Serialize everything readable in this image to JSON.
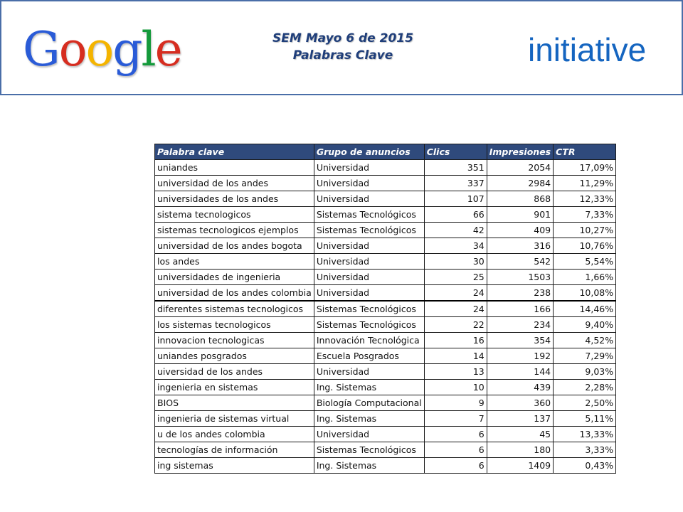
{
  "header": {
    "google_logo": [
      "G",
      "o",
      "o",
      "g",
      "l",
      "e"
    ],
    "google_colors": [
      "#2a5bd7",
      "#d62d20",
      "#f4b400",
      "#2a5bd7",
      "#149a3b",
      "#d62d20"
    ],
    "title_line1": "SEM Mayo 6 de 2015",
    "title_line2": "Palabras Clave",
    "initiative_logo": "initiative",
    "border_color": "#4a6ea8",
    "title_color": "#1f3e7a"
  },
  "table": {
    "header_bg": "#2f4a7c",
    "columns": [
      "Palabra clave",
      "Grupo de anuncios",
      "Clics",
      "Impresiones",
      "CTR"
    ],
    "rows": [
      [
        "uniandes",
        "Universidad",
        "351",
        "2054",
        "17,09%"
      ],
      [
        "universidad de los andes",
        "Universidad",
        "337",
        "2984",
        "11,29%"
      ],
      [
        "universidades de los andes",
        "Universidad",
        "107",
        "868",
        "12,33%"
      ],
      [
        "sistema tecnologicos",
        "Sistemas Tecnológicos",
        "66",
        "901",
        "7,33%"
      ],
      [
        "sistemas tecnologicos ejemplos",
        "Sistemas Tecnológicos",
        "42",
        "409",
        "10,27%"
      ],
      [
        "universidad de los andes bogota",
        "Universidad",
        "34",
        "316",
        "10,76%"
      ],
      [
        "los andes",
        "Universidad",
        "30",
        "542",
        "5,54%"
      ],
      [
        "universidades de ingenieria",
        "Universidad",
        "25",
        "1503",
        "1,66%"
      ],
      [
        "universidad de los andes colombia",
        "Universidad",
        "24",
        "238",
        "10,08%"
      ],
      [
        "diferentes sistemas tecnologicos",
        "Sistemas Tecnológicos",
        "24",
        "166",
        "14,46%"
      ],
      [
        "los sistemas tecnologicos",
        "Sistemas Tecnológicos",
        "22",
        "234",
        "9,40%"
      ],
      [
        "innovacion tecnologicas",
        "Innovación Tecnológica",
        "16",
        "354",
        "4,52%"
      ],
      [
        "uniandes posgrados",
        "Escuela Posgrados",
        "14",
        "192",
        "7,29%"
      ],
      [
        "uiversidad de los andes",
        "Universidad",
        "13",
        "144",
        "9,03%"
      ],
      [
        "ingenieria en sistemas",
        "Ing. Sistemas",
        "10",
        "439",
        "2,28%"
      ],
      [
        "BIOS",
        "Biología Computacional",
        "9",
        "360",
        "2,50%"
      ],
      [
        "ingenieria de sistemas virtual",
        "Ing. Sistemas",
        "7",
        "137",
        "5,11%"
      ],
      [
        "u de los andes colombia",
        "Universidad",
        "6",
        "45",
        "13,33%"
      ],
      [
        "tecnologías de información",
        "Sistemas Tecnológicos",
        "6",
        "180",
        "3,33%"
      ],
      [
        "ing sistemas",
        "Ing. Sistemas",
        "6",
        "1409",
        "0,43%"
      ]
    ]
  }
}
